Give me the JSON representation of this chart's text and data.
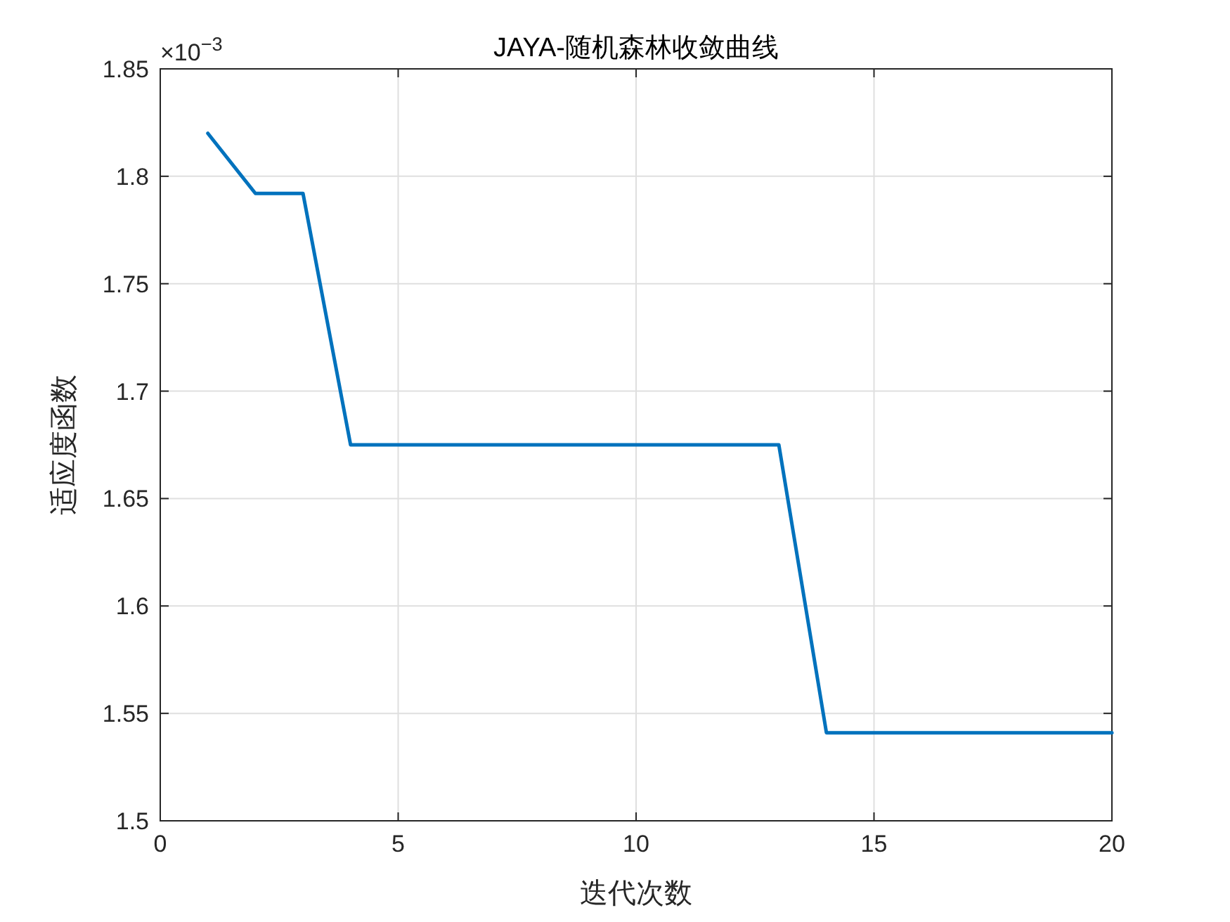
{
  "chart_data": {
    "type": "line",
    "title": "JAYA-随机森林收敛曲线",
    "xlabel": "迭代次数",
    "ylabel": "适应度函数",
    "x": [
      1,
      2,
      3,
      4,
      5,
      6,
      7,
      8,
      9,
      10,
      11,
      12,
      13,
      14,
      15,
      16,
      17,
      18,
      19,
      20
    ],
    "series": [
      {
        "color": "#0072bd",
        "values": [
          1.82,
          1.792,
          1.792,
          1.675,
          1.675,
          1.675,
          1.675,
          1.675,
          1.675,
          1.675,
          1.675,
          1.675,
          1.675,
          1.541,
          1.541,
          1.541,
          1.541,
          1.541,
          1.541,
          1.541
        ]
      }
    ],
    "xlim": [
      0,
      20
    ],
    "xticks": [
      0,
      5,
      10,
      15,
      20
    ],
    "ylim": [
      1.5,
      1.85
    ],
    "yticks": [
      1.5,
      1.55,
      1.6,
      1.65,
      1.7,
      1.75,
      1.8,
      1.85
    ],
    "annotations": [
      "×10$^{−3}$"
    ],
    "grid": true,
    "marker": "none",
    "line_style": "solid"
  }
}
